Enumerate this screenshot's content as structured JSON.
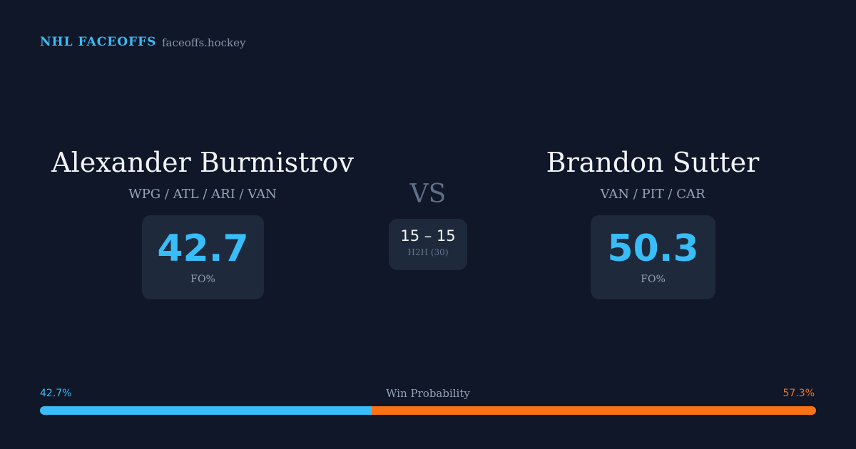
{
  "header": {
    "title": "NHL FACEOFFS",
    "site": "faceoffs.hockey"
  },
  "players": [
    {
      "name": "Alexander Burmistrov",
      "teams": "WPG / ATL / ARI / VAN",
      "fo_pct": 42.7,
      "fo_label": "FO%"
    },
    {
      "name": "Brandon Sutter",
      "teams": "VAN / PIT / CAR",
      "fo_pct": 50.3,
      "fo_label": "FO%"
    }
  ],
  "vs": "VS",
  "h2h": {
    "score": "15 – 15",
    "label": "H2H (30)"
  },
  "win_probability": {
    "title": "Win Probability",
    "values": [
      42.7,
      57.3
    ],
    "value_labels": [
      "42.7%",
      "57.3%"
    ],
    "colors": [
      "#38bdf8",
      "#f97316"
    ]
  }
}
